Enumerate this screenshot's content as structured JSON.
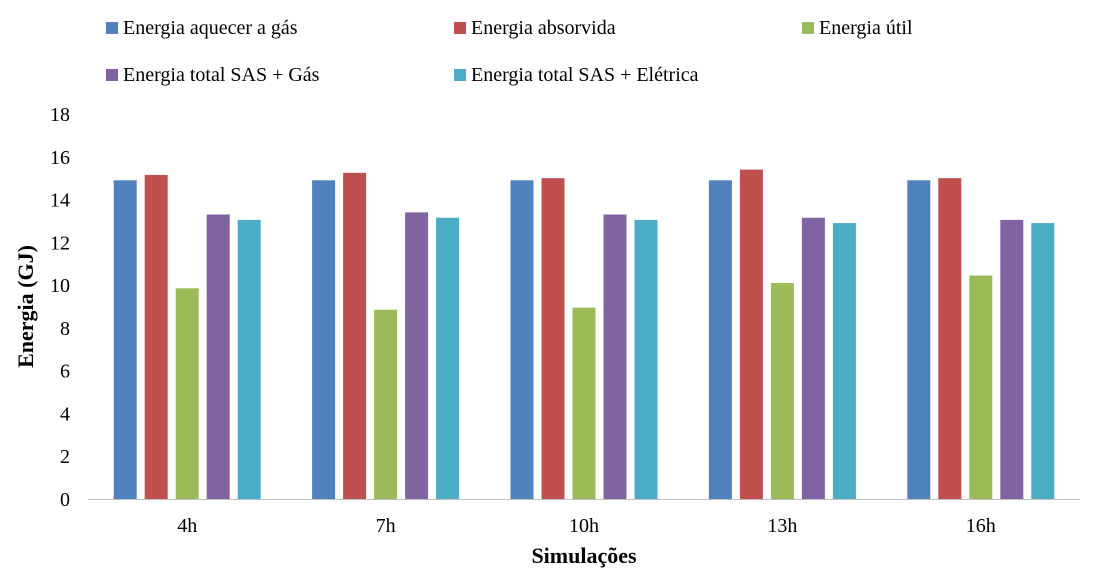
{
  "chart_data": {
    "type": "bar",
    "title": "",
    "xlabel": "Simulações",
    "ylabel": "Energia (GJ)",
    "ylim": [
      0,
      18
    ],
    "yticks": [
      0,
      2,
      4,
      6,
      8,
      10,
      12,
      14,
      16,
      18
    ],
    "grid": false,
    "legend_position": "top",
    "categories": [
      "4h",
      "7h",
      "10h",
      "13h",
      "16h"
    ],
    "series": [
      {
        "name": "Energia aquecer a gás",
        "color": "#4F81BD",
        "values": [
          14.9,
          14.9,
          14.9,
          14.9,
          14.9
        ]
      },
      {
        "name": "Energia absorvida",
        "color": "#C0504D",
        "values": [
          15.15,
          15.25,
          15.0,
          15.4,
          15.0
        ]
      },
      {
        "name": "Energia útil",
        "color": "#9BBB59",
        "values": [
          9.85,
          8.85,
          8.95,
          10.1,
          10.45
        ]
      },
      {
        "name": "Energia total SAS + Gás",
        "color": "#8064A2",
        "values": [
          13.3,
          13.4,
          13.3,
          13.15,
          13.05
        ]
      },
      {
        "name": "Energia total SAS + Elétrica",
        "color": "#4BACC6",
        "values": [
          13.05,
          13.15,
          13.05,
          12.9,
          12.9
        ]
      }
    ]
  }
}
